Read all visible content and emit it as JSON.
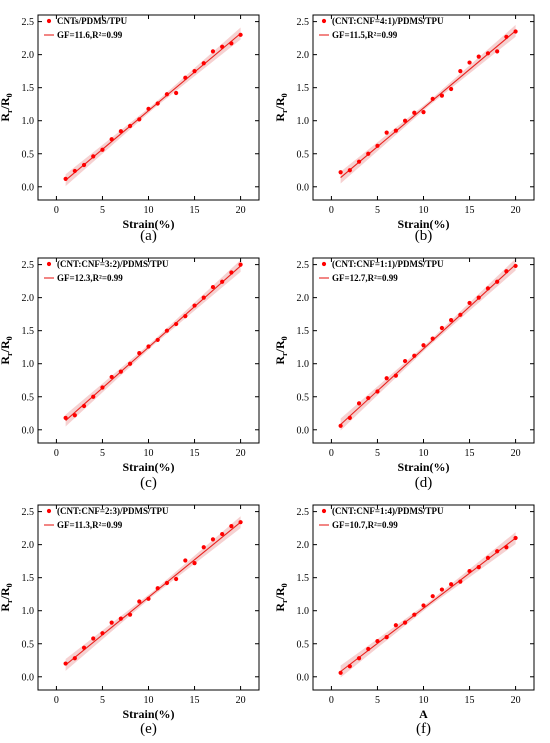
{
  "chart_data": [
    {
      "type": "scatter",
      "panel": "(a)",
      "legend": {
        "series": "CNTs/PDMS/TPU",
        "fit": "GF=11.6,R²=0.99"
      },
      "xlabel": "Strain(%)",
      "ylabel": "Rr/R0",
      "xlim": [
        -2,
        22
      ],
      "ylim": [
        -0.2,
        2.6
      ],
      "xticks": [
        "0",
        "5",
        "10",
        "15",
        "20"
      ],
      "yticks": [
        "0.0",
        "0.5",
        "1.0",
        "1.5",
        "2.0",
        "2.5"
      ],
      "x": [
        1,
        2,
        3,
        4,
        5,
        6,
        7,
        8,
        9,
        10,
        11,
        12,
        13,
        14,
        15,
        16,
        17,
        18,
        19,
        20
      ],
      "y": [
        0.12,
        0.24,
        0.33,
        0.46,
        0.56,
        0.72,
        0.84,
        0.92,
        1.02,
        1.18,
        1.26,
        1.4,
        1.42,
        1.65,
        1.75,
        1.87,
        2.05,
        2.12,
        2.17,
        2.3
      ],
      "fit": [
        [
          1,
          0.1
        ],
        [
          20,
          2.32
        ]
      ]
    },
    {
      "type": "scatter",
      "panel": "(b)",
      "legend": {
        "series": "(CNT:CNF=4:1)/PDMS/TPU",
        "fit": "GF=11.5,R²=0.99"
      },
      "xlabel": "Strain(%)",
      "ylabel": "Rr/R0",
      "xlim": [
        -2,
        22
      ],
      "ylim": [
        -0.2,
        2.6
      ],
      "xticks": [
        "0",
        "5",
        "10",
        "15",
        "20"
      ],
      "yticks": [
        "0.0",
        "0.5",
        "1.0",
        "1.5",
        "2.0",
        "2.5"
      ],
      "x": [
        1,
        2,
        3,
        4,
        5,
        6,
        7,
        8,
        9,
        10,
        11,
        12,
        13,
        14,
        15,
        16,
        17,
        18,
        19,
        20
      ],
      "y": [
        0.22,
        0.25,
        0.38,
        0.5,
        0.62,
        0.82,
        0.85,
        1.0,
        1.12,
        1.13,
        1.33,
        1.38,
        1.48,
        1.75,
        1.88,
        1.97,
        2.02,
        2.05,
        2.27,
        2.35
      ],
      "fit": [
        [
          1,
          0.14
        ],
        [
          20,
          2.36
        ]
      ]
    },
    {
      "type": "scatter",
      "panel": "(c)",
      "legend": {
        "series": "(CNT:CNF=3:2)/PDMS/TPU",
        "fit": "GF=12.3,R²=0.99"
      },
      "xlabel": "Strain(%)",
      "ylabel": "Rr/R0",
      "xlim": [
        -2,
        22
      ],
      "ylim": [
        -0.2,
        2.6
      ],
      "xticks": [
        "0",
        "5",
        "10",
        "15",
        "20"
      ],
      "yticks": [
        "0.0",
        "0.5",
        "1.0",
        "1.5",
        "2.0",
        "2.5"
      ],
      "x": [
        1,
        2,
        3,
        4,
        5,
        6,
        7,
        8,
        9,
        10,
        11,
        12,
        13,
        14,
        15,
        16,
        17,
        18,
        19,
        20
      ],
      "y": [
        0.18,
        0.22,
        0.36,
        0.5,
        0.64,
        0.8,
        0.88,
        1.0,
        1.16,
        1.26,
        1.36,
        1.5,
        1.6,
        1.72,
        1.88,
        2.0,
        2.16,
        2.24,
        2.38,
        2.5
      ],
      "fit": [
        [
          1,
          0.14
        ],
        [
          20,
          2.48
        ]
      ]
    },
    {
      "type": "scatter",
      "panel": "(d)",
      "legend": {
        "series": "(CNT:CNF=1:1)/PDMS/TPU",
        "fit": "GF=12.7,R²=0.99"
      },
      "xlabel": "Strain(%)",
      "ylabel": "Rr/R0",
      "xlim": [
        -2,
        22
      ],
      "ylim": [
        -0.2,
        2.6
      ],
      "xticks": [
        "0",
        "5",
        "10",
        "15",
        "20"
      ],
      "yticks": [
        "0.0",
        "0.5",
        "1.0",
        "1.5",
        "2.0",
        "2.5"
      ],
      "x": [
        1,
        2,
        3,
        4,
        5,
        6,
        7,
        8,
        9,
        10,
        11,
        12,
        13,
        14,
        15,
        16,
        17,
        18,
        19,
        20
      ],
      "y": [
        0.06,
        0.18,
        0.4,
        0.48,
        0.58,
        0.78,
        0.82,
        1.04,
        1.12,
        1.28,
        1.38,
        1.54,
        1.66,
        1.74,
        1.92,
        2.0,
        2.14,
        2.24,
        2.4,
        2.48
      ],
      "fit": [
        [
          1,
          0.08
        ],
        [
          20,
          2.5
        ]
      ]
    },
    {
      "type": "scatter",
      "panel": "(e)",
      "legend": {
        "series": "(CNT:CNF=2:3)/PDMS/TPU",
        "fit": "GF=11.3,R²=0.99"
      },
      "xlabel": "Strain(%)",
      "ylabel": "Rr/R0",
      "xlim": [
        -2,
        22
      ],
      "ylim": [
        -0.2,
        2.6
      ],
      "xticks": [
        "0",
        "5",
        "10",
        "15",
        "20"
      ],
      "yticks": [
        "0.0",
        "0.5",
        "1.0",
        "1.5",
        "2.0",
        "2.5"
      ],
      "x": [
        1,
        2,
        3,
        4,
        5,
        6,
        7,
        8,
        9,
        10,
        11,
        12,
        13,
        14,
        15,
        16,
        17,
        18,
        19,
        20
      ],
      "y": [
        0.2,
        0.28,
        0.44,
        0.58,
        0.66,
        0.82,
        0.88,
        0.94,
        1.14,
        1.18,
        1.34,
        1.42,
        1.48,
        1.76,
        1.72,
        1.96,
        2.08,
        2.16,
        2.28,
        2.34
      ],
      "fit": [
        [
          1,
          0.18
        ],
        [
          20,
          2.34
        ]
      ]
    },
    {
      "type": "scatter",
      "panel": "(f)",
      "legend": {
        "series": "(CNT:CNF=1:4)/PDMS/TPU",
        "fit": "GF=10.7,R²=0.99"
      },
      "xlabel": "A",
      "ylabel": "Rr/R0",
      "xlim": [
        -2,
        22
      ],
      "ylim": [
        -0.2,
        2.6
      ],
      "xticks": [
        "0",
        "5",
        "10",
        "15",
        "20"
      ],
      "yticks": [
        "0.0",
        "0.5",
        "1.0",
        "1.5",
        "2.0",
        "2.5"
      ],
      "x": [
        1,
        2,
        3,
        4,
        5,
        6,
        7,
        8,
        9,
        10,
        11,
        12,
        13,
        14,
        15,
        16,
        17,
        18,
        19,
        20
      ],
      "y": [
        0.06,
        0.16,
        0.28,
        0.42,
        0.54,
        0.6,
        0.78,
        0.82,
        0.94,
        1.08,
        1.22,
        1.32,
        1.4,
        1.44,
        1.6,
        1.66,
        1.8,
        1.9,
        1.96,
        2.1
      ],
      "fit": [
        [
          1,
          0.08
        ],
        [
          20,
          2.1
        ]
      ]
    }
  ],
  "colors": {
    "marker": "#ff0000",
    "fit": "#e8231f",
    "band": "#f5c9c9"
  }
}
